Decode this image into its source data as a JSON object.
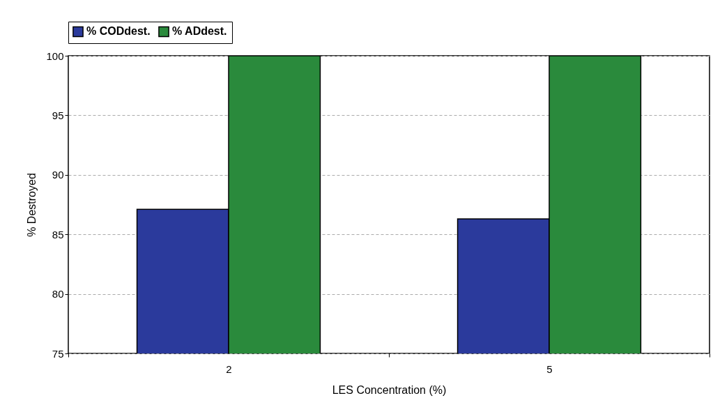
{
  "chart_data": {
    "type": "bar",
    "xlabel": "LES Concentration (%)",
    "ylabel": "% Destroyed",
    "categories": [
      "2",
      "5"
    ],
    "series": [
      {
        "name": "% CODdest.",
        "color": "#2b3a9c",
        "values": [
          87.1,
          86.3
        ]
      },
      {
        "name": "% ADdest.",
        "color": "#2a8a3c",
        "values": [
          100,
          100
        ]
      }
    ],
    "ylim": [
      75,
      100
    ],
    "yticks": [
      75,
      80,
      85,
      90,
      95,
      100
    ],
    "grid": "y",
    "legend": "top"
  }
}
